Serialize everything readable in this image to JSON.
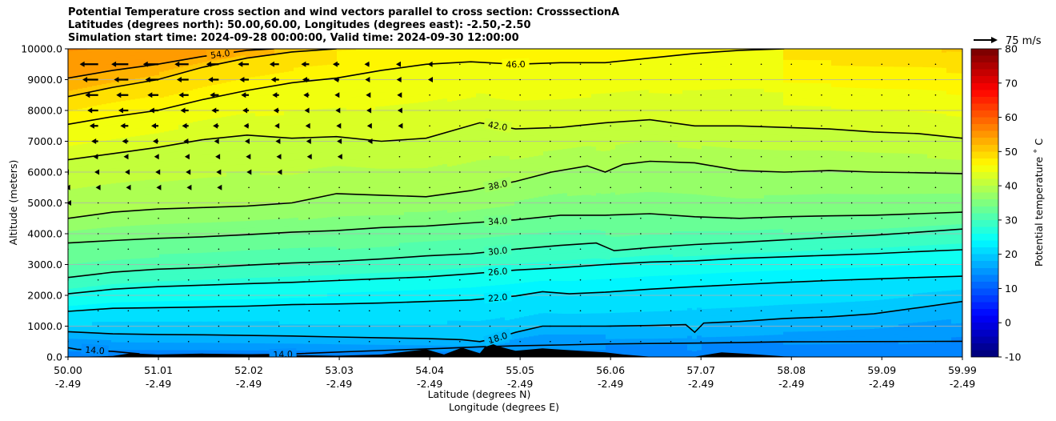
{
  "title_lines": [
    "Potential Temperature cross section and wind vectors parallel to cross section: CrosssectionA",
    "Latitudes (degrees north): 50.00,60.00, Longitudes (degrees east): -2.50,-2.50",
    "Simulation start time: 2024-09-28 00:00:00, Valid time: 2024-09-30 12:00:00"
  ],
  "colors": {
    "colormap": [
      "#00007f",
      "#0000ff",
      "#007fff",
      "#00ffff",
      "#7fff7f",
      "#ffff00",
      "#ff7f00",
      "#ff0000",
      "#7f0000"
    ],
    "contour_line": "#000000",
    "terrain": "#000000",
    "gridline": "#b0b0b0"
  },
  "chart_data": {
    "type": "contour",
    "xlabel": "Latitude (degrees N)",
    "xlabel2": "Longitude (degrees E)",
    "ylabel": "Altitude (meters)",
    "xlim": [
      50.0,
      59.99
    ],
    "ylim": [
      0,
      10000
    ],
    "grid": "horizontal",
    "x_ticks": [
      {
        "lat": "50.00",
        "lon": "-2.49"
      },
      {
        "lat": "51.01",
        "lon": "-2.49"
      },
      {
        "lat": "52.02",
        "lon": "-2.49"
      },
      {
        "lat": "53.03",
        "lon": "-2.49"
      },
      {
        "lat": "54.04",
        "lon": "-2.49"
      },
      {
        "lat": "55.05",
        "lon": "-2.49"
      },
      {
        "lat": "56.06",
        "lon": "-2.49"
      },
      {
        "lat": "57.07",
        "lon": "-2.49"
      },
      {
        "lat": "58.08",
        "lon": "-2.49"
      },
      {
        "lat": "59.09",
        "lon": "-2.49"
      },
      {
        "lat": "59.99",
        "lon": "-2.49"
      }
    ],
    "y_ticks": [
      "0.0",
      "1000.0",
      "2000.0",
      "3000.0",
      "4000.0",
      "5000.0",
      "6000.0",
      "7000.0",
      "8000.0",
      "9000.0",
      "10000.0"
    ],
    "colorbar": {
      "label": "Potential temperature $^\\circ$C",
      "label_display": "Potential temperature ˚ C",
      "min": -10,
      "max": 80,
      "ticks": [
        -10,
        0,
        10,
        20,
        30,
        40,
        50,
        60,
        70,
        80
      ]
    },
    "quiver_key": {
      "label": "75 m/s",
      "speed": 75
    },
    "contours": [
      {
        "level": 14.0,
        "label": "14.0",
        "points": [
          [
            50.0,
            300
          ],
          [
            50.1,
            250
          ],
          [
            50.3,
            220
          ],
          [
            50.5,
            180
          ],
          [
            50.8,
            100
          ]
        ]
      },
      {
        "level": 14.0,
        "label": "14.0",
        "points": [
          [
            51.8,
            60
          ],
          [
            52.3,
            80
          ],
          [
            52.6,
            110
          ],
          [
            53.1,
            170
          ],
          [
            53.6,
            220
          ],
          [
            54.2,
            280
          ],
          [
            54.6,
            330
          ],
          [
            55.0,
            360
          ],
          [
            55.5,
            390
          ],
          [
            56.0,
            420
          ],
          [
            56.6,
            440
          ],
          [
            57.0,
            450
          ],
          [
            57.5,
            470
          ],
          [
            58.0,
            490
          ],
          [
            59.0,
            500
          ],
          [
            59.99,
            510
          ]
        ]
      },
      {
        "level": 18.0,
        "label": "18.0",
        "points": [
          [
            50.0,
            820
          ],
          [
            50.5,
            750
          ],
          [
            51.0,
            730
          ],
          [
            51.5,
            720
          ],
          [
            52.0,
            700
          ],
          [
            52.5,
            680
          ],
          [
            53.0,
            650
          ],
          [
            53.5,
            620
          ],
          [
            54.0,
            600
          ],
          [
            54.4,
            560
          ],
          [
            54.6,
            500
          ],
          [
            54.8,
            620
          ],
          [
            55.0,
            800
          ],
          [
            55.3,
            1000
          ],
          [
            55.6,
            1000
          ],
          [
            56.0,
            1000
          ],
          [
            56.5,
            1020
          ],
          [
            56.9,
            1050
          ],
          [
            57.0,
            800
          ],
          [
            57.1,
            1100
          ],
          [
            57.5,
            1150
          ],
          [
            58.0,
            1250
          ],
          [
            58.5,
            1300
          ],
          [
            59.0,
            1400
          ],
          [
            59.5,
            1600
          ],
          [
            59.99,
            1800
          ]
        ]
      },
      {
        "level": 22.0,
        "label": "22.0",
        "points": [
          [
            50.0,
            1480
          ],
          [
            50.5,
            1580
          ],
          [
            51.0,
            1600
          ],
          [
            51.5,
            1620
          ],
          [
            52.0,
            1650
          ],
          [
            52.5,
            1700
          ],
          [
            53.0,
            1720
          ],
          [
            53.5,
            1750
          ],
          [
            54.0,
            1800
          ],
          [
            54.5,
            1850
          ],
          [
            55.0,
            1980
          ],
          [
            55.3,
            2120
          ],
          [
            55.6,
            2050
          ],
          [
            56.0,
            2100
          ],
          [
            56.5,
            2200
          ],
          [
            57.0,
            2280
          ],
          [
            57.5,
            2350
          ],
          [
            58.0,
            2420
          ],
          [
            58.5,
            2480
          ],
          [
            59.0,
            2530
          ],
          [
            59.5,
            2580
          ],
          [
            59.99,
            2620
          ]
        ]
      },
      {
        "level": 26.0,
        "label": "26.0",
        "points": [
          [
            50.0,
            2050
          ],
          [
            50.5,
            2200
          ],
          [
            51.0,
            2280
          ],
          [
            51.5,
            2330
          ],
          [
            52.0,
            2380
          ],
          [
            52.5,
            2420
          ],
          [
            53.0,
            2480
          ],
          [
            53.5,
            2540
          ],
          [
            54.0,
            2600
          ],
          [
            54.5,
            2700
          ],
          [
            55.0,
            2820
          ],
          [
            55.5,
            2900
          ],
          [
            56.0,
            3000
          ],
          [
            56.5,
            3080
          ],
          [
            57.0,
            3120
          ],
          [
            57.5,
            3200
          ],
          [
            58.0,
            3250
          ],
          [
            58.5,
            3300
          ],
          [
            59.0,
            3350
          ],
          [
            59.5,
            3420
          ],
          [
            59.99,
            3480
          ]
        ]
      },
      {
        "level": 30.0,
        "label": "30.0",
        "points": [
          [
            50.0,
            2580
          ],
          [
            50.5,
            2750
          ],
          [
            51.0,
            2850
          ],
          [
            51.5,
            2900
          ],
          [
            52.0,
            2980
          ],
          [
            52.5,
            3050
          ],
          [
            53.0,
            3100
          ],
          [
            53.5,
            3180
          ],
          [
            54.0,
            3280
          ],
          [
            54.5,
            3350
          ],
          [
            55.0,
            3500
          ],
          [
            55.5,
            3620
          ],
          [
            55.9,
            3700
          ],
          [
            56.1,
            3450
          ],
          [
            56.5,
            3550
          ],
          [
            57.0,
            3650
          ],
          [
            57.5,
            3720
          ],
          [
            58.0,
            3800
          ],
          [
            58.5,
            3880
          ],
          [
            59.0,
            3950
          ],
          [
            59.5,
            4050
          ],
          [
            59.99,
            4150
          ]
        ]
      },
      {
        "level": 34.0,
        "label": "34.0",
        "points": [
          [
            50.0,
            3700
          ],
          [
            50.5,
            3780
          ],
          [
            51.0,
            3850
          ],
          [
            51.5,
            3900
          ],
          [
            52.0,
            3970
          ],
          [
            52.5,
            4050
          ],
          [
            53.0,
            4100
          ],
          [
            53.5,
            4200
          ],
          [
            54.0,
            4250
          ],
          [
            54.5,
            4350
          ],
          [
            55.0,
            4450
          ],
          [
            55.5,
            4600
          ],
          [
            56.0,
            4600
          ],
          [
            56.5,
            4650
          ],
          [
            57.0,
            4550
          ],
          [
            57.5,
            4500
          ],
          [
            58.0,
            4550
          ],
          [
            58.5,
            4580
          ],
          [
            59.0,
            4600
          ],
          [
            59.5,
            4650
          ],
          [
            59.99,
            4700
          ]
        ]
      },
      {
        "level": 38.0,
        "label": "38.0",
        "points": [
          [
            50.0,
            4500
          ],
          [
            50.5,
            4700
          ],
          [
            51.0,
            4800
          ],
          [
            51.5,
            4850
          ],
          [
            52.0,
            4900
          ],
          [
            52.5,
            5000
          ],
          [
            53.0,
            5300
          ],
          [
            53.5,
            5250
          ],
          [
            54.0,
            5200
          ],
          [
            54.5,
            5400
          ],
          [
            55.0,
            5700
          ],
          [
            55.4,
            6000
          ],
          [
            55.8,
            6200
          ],
          [
            56.0,
            6000
          ],
          [
            56.2,
            6250
          ],
          [
            56.5,
            6350
          ],
          [
            57.0,
            6300
          ],
          [
            57.5,
            6050
          ],
          [
            58.0,
            6000
          ],
          [
            58.5,
            6050
          ],
          [
            59.0,
            6000
          ],
          [
            59.5,
            5980
          ],
          [
            59.99,
            5950
          ]
        ]
      },
      {
        "level": 42.0,
        "label": "42.0",
        "points": [
          [
            50.0,
            6400
          ],
          [
            50.5,
            6600
          ],
          [
            51.0,
            6800
          ],
          [
            51.5,
            7050
          ],
          [
            52.0,
            7200
          ],
          [
            52.5,
            7100
          ],
          [
            53.0,
            7150
          ],
          [
            53.5,
            7000
          ],
          [
            54.0,
            7100
          ],
          [
            54.6,
            7600
          ],
          [
            55.0,
            7400
          ],
          [
            55.5,
            7450
          ],
          [
            56.0,
            7600
          ],
          [
            56.5,
            7700
          ],
          [
            57.0,
            7500
          ],
          [
            57.5,
            7500
          ],
          [
            58.0,
            7450
          ],
          [
            58.5,
            7400
          ],
          [
            59.0,
            7300
          ],
          [
            59.5,
            7250
          ],
          [
            59.99,
            7100
          ]
        ]
      },
      {
        "level": 46.0,
        "label": "46.0",
        "points": [
          [
            50.0,
            7550
          ],
          [
            50.5,
            7800
          ],
          [
            51.0,
            8000
          ],
          [
            51.5,
            8350
          ],
          [
            52.0,
            8650
          ],
          [
            52.5,
            8900
          ],
          [
            53.0,
            9050
          ],
          [
            53.5,
            9300
          ],
          [
            54.0,
            9500
          ],
          [
            54.5,
            9580
          ],
          [
            55.0,
            9500
          ],
          [
            55.5,
            9550
          ],
          [
            56.0,
            9550
          ],
          [
            56.5,
            9700
          ],
          [
            57.0,
            9850
          ],
          [
            57.5,
            9950
          ],
          [
            58.0,
            10000
          ]
        ]
      },
      {
        "level": 50.0,
        "label": "",
        "points": [
          [
            50.0,
            8450
          ],
          [
            50.5,
            8750
          ],
          [
            51.0,
            9000
          ],
          [
            51.5,
            9400
          ],
          [
            52.0,
            9700
          ],
          [
            52.5,
            9900
          ],
          [
            53.0,
            10000
          ]
        ]
      },
      {
        "level": 54.0,
        "label": "54.0",
        "points": [
          [
            50.0,
            9050
          ],
          [
            50.5,
            9300
          ],
          [
            51.0,
            9500
          ],
          [
            51.5,
            9750
          ],
          [
            52.0,
            9950
          ],
          [
            52.3,
            10000
          ]
        ]
      }
    ],
    "terrain_profile": [
      [
        50.0,
        0
      ],
      [
        50.5,
        30
      ],
      [
        50.7,
        120
      ],
      [
        51.0,
        80
      ],
      [
        51.5,
        110
      ],
      [
        52.0,
        90
      ],
      [
        52.5,
        60
      ],
      [
        53.0,
        40
      ],
      [
        53.5,
        80
      ],
      [
        54.0,
        250
      ],
      [
        54.2,
        80
      ],
      [
        54.4,
        300
      ],
      [
        54.6,
        120
      ],
      [
        54.7,
        480
      ],
      [
        54.8,
        350
      ],
      [
        55.0,
        200
      ],
      [
        55.3,
        280
      ],
      [
        55.6,
        220
      ],
      [
        56.0,
        150
      ],
      [
        56.2,
        80
      ],
      [
        56.5,
        10
      ],
      [
        57.0,
        10
      ],
      [
        57.3,
        150
      ],
      [
        57.6,
        100
      ],
      [
        58.0,
        20
      ],
      [
        58.5,
        0
      ]
    ],
    "wind_vectors_sample": [
      {
        "lat": 50.0,
        "alt": 9500,
        "u_ms": -60
      },
      {
        "lat": 51.0,
        "alt": 9500,
        "u_ms": -45
      },
      {
        "lat": 52.0,
        "alt": 9000,
        "u_ms": -25
      },
      {
        "lat": 51.0,
        "alt": 7000,
        "u_ms": -30
      },
      {
        "lat": 52.0,
        "alt": 7000,
        "u_ms": -12
      },
      {
        "lat": 53.0,
        "alt": 8500,
        "u_ms": -10
      },
      {
        "lat": 54.0,
        "alt": 9000,
        "u_ms": -5
      },
      {
        "lat": 51.0,
        "alt": 4000,
        "u_ms": -8
      },
      {
        "lat": 56.0,
        "alt": 5000,
        "u_ms": 0
      }
    ]
  }
}
